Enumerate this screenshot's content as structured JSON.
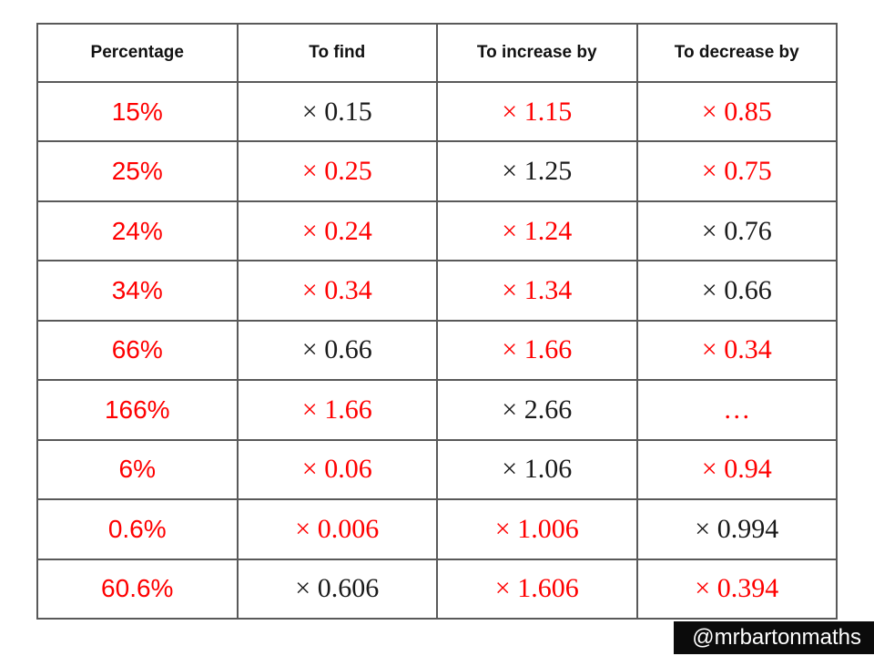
{
  "colors": {
    "red": "#fe0000",
    "black": "#1a1a1a",
    "grid": "#595959",
    "badge_bg": "#0b0b0b",
    "badge_text": "#ffffff"
  },
  "table": {
    "headers": [
      "Percentage",
      "To find",
      "To increase by",
      "To decrease by"
    ],
    "column_keys": [
      "percentage",
      "to-find",
      "to-increase-by",
      "to-decrease-by"
    ],
    "rows": [
      [
        {
          "text": "15%",
          "color": "red"
        },
        {
          "text": "× 0.15",
          "color": "black"
        },
        {
          "text": "× 1.15",
          "color": "red"
        },
        {
          "text": "× 0.85",
          "color": "red"
        }
      ],
      [
        {
          "text": "25%",
          "color": "red"
        },
        {
          "text": "× 0.25",
          "color": "red"
        },
        {
          "text": "× 1.25",
          "color": "black"
        },
        {
          "text": "× 0.75",
          "color": "red"
        }
      ],
      [
        {
          "text": "24%",
          "color": "red"
        },
        {
          "text": "× 0.24",
          "color": "red"
        },
        {
          "text": "× 1.24",
          "color": "red"
        },
        {
          "text": "× 0.76",
          "color": "black"
        }
      ],
      [
        {
          "text": "34%",
          "color": "red"
        },
        {
          "text": "× 0.34",
          "color": "red"
        },
        {
          "text": "× 1.34",
          "color": "red"
        },
        {
          "text": "× 0.66",
          "color": "black"
        }
      ],
      [
        {
          "text": "66%",
          "color": "red"
        },
        {
          "text": "× 0.66",
          "color": "black"
        },
        {
          "text": "× 1.66",
          "color": "red"
        },
        {
          "text": "× 0.34",
          "color": "red"
        }
      ],
      [
        {
          "text": "166%",
          "color": "red"
        },
        {
          "text": "× 1.66",
          "color": "red"
        },
        {
          "text": "× 2.66",
          "color": "black"
        },
        {
          "text": "…",
          "color": "red"
        }
      ],
      [
        {
          "text": "6%",
          "color": "red"
        },
        {
          "text": "× 0.06",
          "color": "red"
        },
        {
          "text": "× 1.06",
          "color": "black"
        },
        {
          "text": "× 0.94",
          "color": "red"
        }
      ],
      [
        {
          "text": "0.6%",
          "color": "red"
        },
        {
          "text": "× 0.006",
          "color": "red"
        },
        {
          "text": "× 1.006",
          "color": "red"
        },
        {
          "text": "× 0.994",
          "color": "black"
        }
      ],
      [
        {
          "text": "60.6%",
          "color": "red"
        },
        {
          "text": "× 0.606",
          "color": "black"
        },
        {
          "text": "× 1.606",
          "color": "red"
        },
        {
          "text": "× 0.394",
          "color": "red"
        }
      ]
    ]
  },
  "badge": {
    "label": "@mrbartonmaths"
  },
  "chart_data": {
    "type": "table",
    "columns": [
      "Percentage",
      "To find",
      "To increase by",
      "To decrease by"
    ],
    "rows": [
      [
        "15%",
        "× 0.15",
        "× 1.15",
        "× 0.85"
      ],
      [
        "25%",
        "× 0.25",
        "× 1.25",
        "× 0.75"
      ],
      [
        "24%",
        "× 0.24",
        "× 1.24",
        "× 0.76"
      ],
      [
        "34%",
        "× 0.34",
        "× 1.34",
        "× 0.66"
      ],
      [
        "66%",
        "× 0.66",
        "× 1.66",
        "× 0.34"
      ],
      [
        "166%",
        "× 1.66",
        "× 2.66",
        "…"
      ],
      [
        "6%",
        "× 0.06",
        "× 1.06",
        "× 0.94"
      ],
      [
        "0.6%",
        "× 0.006",
        "× 1.006",
        "× 0.994"
      ],
      [
        "60.6%",
        "× 0.606",
        "× 1.606",
        "× 0.394"
      ]
    ]
  }
}
